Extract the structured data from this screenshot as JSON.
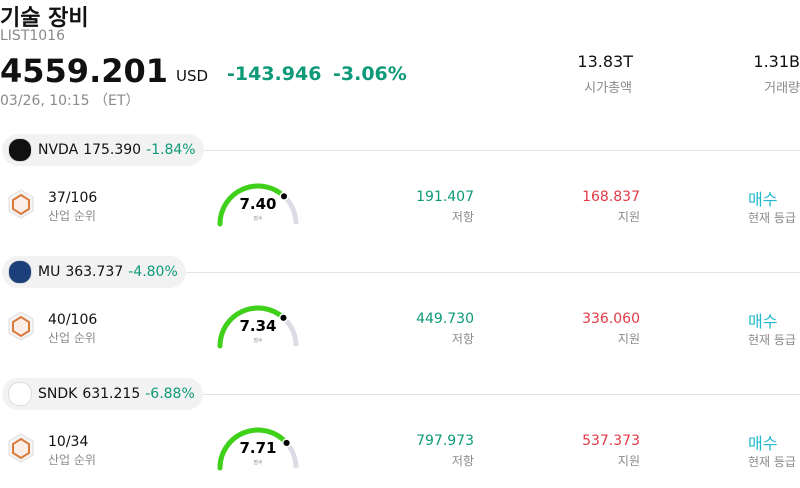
{
  "header": {
    "title": "기술 장비",
    "code": "LIST1016",
    "price": "4559.201",
    "currency": "USD",
    "change": "-143.946",
    "change_pct": "-3.06%",
    "time": "03/26, 10:15 （ET）",
    "market_cap": "13.83T",
    "market_cap_label": "시가총액",
    "volume": "1.31B",
    "volume_label": "거래량"
  },
  "gauge_lim": [
    0,
    10
  ],
  "stocks": [
    {
      "name": "NVDA",
      "price": "175.390",
      "change_pct": "-1.84%",
      "rank": "37/106",
      "rank_label": "산업 순위",
      "score": {
        "value": 7.4,
        "label": "7.40"
      },
      "score_label": "점수",
      "resistance": "191.407",
      "resistance_label": "저항",
      "support": "168.837",
      "support_label": "지원",
      "rating": "매수",
      "rating_label": "현재 등급"
    },
    {
      "name": "MU",
      "price": "363.737",
      "change_pct": "-4.80%",
      "rank": "40/106",
      "rank_label": "산업 순위",
      "score": {
        "value": 7.34,
        "label": "7.34"
      },
      "score_label": "점수",
      "resistance": "449.730",
      "resistance_label": "저항",
      "support": "336.060",
      "support_label": "지원",
      "rating": "매수",
      "rating_label": "현재 등급"
    },
    {
      "name": "SNDK",
      "price": "631.215",
      "change_pct": "-6.88%",
      "rank": "10/34",
      "rank_label": "산업 순위",
      "score": {
        "value": 7.71,
        "label": "7.71"
      },
      "score_label": "점수",
      "resistance": "797.973",
      "resistance_label": "저항",
      "support": "537.373",
      "support_label": "지원",
      "rating": "매수",
      "rating_label": "현재 등급"
    }
  ]
}
